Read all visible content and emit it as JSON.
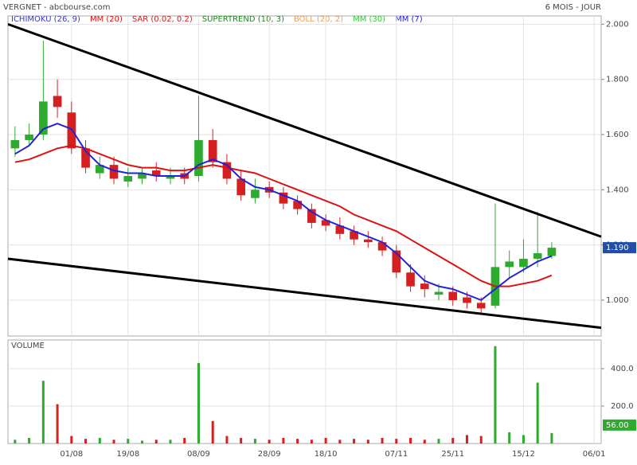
{
  "chart_data": {
    "type": "candlestick",
    "title": "VERGNET - abcbourse.com",
    "period": "6 MOIS - JOUR",
    "categories": [
      null,
      null,
      null,
      null,
      "01/08",
      null,
      null,
      null,
      "19/08",
      null,
      null,
      null,
      null,
      "08/09",
      null,
      null,
      null,
      null,
      "28/09",
      null,
      null,
      null,
      "18/10",
      null,
      null,
      null,
      null,
      "07/11",
      null,
      null,
      null,
      "25/11",
      null,
      null,
      null,
      null,
      "15/12",
      null,
      null,
      null,
      null,
      "06/01"
    ],
    "open": [
      1.55,
      1.58,
      1.6,
      1.74,
      1.68,
      1.55,
      1.46,
      1.49,
      1.43,
      1.44,
      1.47,
      1.44,
      1.46,
      1.45,
      1.58,
      1.5,
      1.44,
      1.37,
      1.41,
      1.39,
      1.36,
      1.33,
      1.29,
      1.27,
      1.25,
      1.22,
      1.21,
      1.18,
      1.1,
      1.06,
      1.02,
      1.03,
      1.01,
      0.99,
      0.98,
      1.12,
      1.12,
      1.15,
      1.16,
      null,
      null,
      null
    ],
    "high": [
      1.63,
      1.64,
      1.94,
      1.8,
      1.72,
      1.58,
      1.52,
      1.52,
      1.48,
      1.48,
      1.5,
      1.48,
      1.48,
      1.74,
      1.62,
      1.53,
      1.47,
      1.44,
      1.43,
      1.41,
      1.38,
      1.35,
      1.31,
      1.3,
      1.27,
      1.25,
      1.23,
      1.2,
      1.13,
      1.09,
      1.06,
      1.05,
      1.03,
      1.01,
      1.35,
      1.18,
      1.22,
      1.32,
      1.21,
      null,
      null,
      null
    ],
    "low": [
      1.52,
      1.56,
      1.58,
      1.66,
      1.53,
      1.46,
      1.44,
      1.42,
      1.41,
      1.42,
      1.43,
      1.42,
      1.42,
      1.43,
      1.48,
      1.42,
      1.36,
      1.35,
      1.37,
      1.33,
      1.31,
      1.26,
      1.25,
      1.22,
      1.2,
      1.19,
      1.16,
      1.08,
      1.03,
      1.01,
      1.0,
      0.98,
      0.97,
      0.95,
      0.97,
      1.08,
      1.1,
      1.12,
      1.15,
      null,
      null,
      null
    ],
    "close": [
      1.58,
      1.6,
      1.72,
      1.7,
      1.55,
      1.48,
      1.49,
      1.44,
      1.45,
      1.46,
      1.45,
      1.45,
      1.44,
      1.58,
      1.5,
      1.44,
      1.38,
      1.4,
      1.39,
      1.35,
      1.33,
      1.28,
      1.27,
      1.24,
      1.22,
      1.21,
      1.18,
      1.1,
      1.05,
      1.04,
      1.03,
      1.0,
      0.99,
      0.97,
      1.12,
      1.14,
      1.15,
      1.17,
      1.19,
      null,
      null,
      null
    ],
    "up_color": "#2eaa2e",
    "down_color": "#d42020",
    "indicators": [
      {
        "name": "ICHIMOKU (26, 9)",
        "color": "#3a3acc"
      },
      {
        "name": "MM (20)",
        "color": "#dd1111",
        "values": [
          1.5,
          1.51,
          1.53,
          1.55,
          1.56,
          1.55,
          1.53,
          1.51,
          1.49,
          1.48,
          1.48,
          1.47,
          1.47,
          1.48,
          1.49,
          1.48,
          1.47,
          1.46,
          1.44,
          1.42,
          1.4,
          1.38,
          1.36,
          1.34,
          1.31,
          1.29,
          1.27,
          1.25,
          1.22,
          1.19,
          1.16,
          1.13,
          1.1,
          1.07,
          1.05,
          1.05,
          1.06,
          1.07,
          1.09,
          null,
          null,
          null
        ]
      },
      {
        "name": "SAR (0.02, 0.2)",
        "color": "#cc2222"
      },
      {
        "name": "SUPERTREND (10, 3)",
        "color": "#228822"
      },
      {
        "name": "BOLL (20, 2)",
        "color": "#e8a060"
      },
      {
        "name": "MM (30)",
        "color": "#33cc33"
      },
      {
        "name": "MM (7)",
        "color": "#2222dd",
        "values": [
          1.53,
          1.56,
          1.62,
          1.64,
          1.62,
          1.54,
          1.49,
          1.47,
          1.46,
          1.46,
          1.45,
          1.45,
          1.45,
          1.49,
          1.51,
          1.49,
          1.44,
          1.41,
          1.4,
          1.38,
          1.36,
          1.32,
          1.29,
          1.27,
          1.25,
          1.23,
          1.21,
          1.17,
          1.12,
          1.07,
          1.05,
          1.04,
          1.02,
          1.0,
          1.04,
          1.08,
          1.11,
          1.14,
          1.16,
          null,
          null,
          null
        ]
      }
    ],
    "trend_lines": [
      {
        "values": [
          2.0,
          1.23
        ]
      },
      {
        "values": [
          1.15,
          0.9
        ]
      }
    ],
    "ylim": [
      0.87,
      2.03
    ],
    "yticks": [
      {
        "value": 1,
        "label": "1.000"
      },
      {
        "value": 1.2,
        "label": "1.200"
      },
      {
        "value": 1.4,
        "label": "1.400"
      },
      {
        "value": 1.6,
        "label": "1.600"
      },
      {
        "value": 1.8,
        "label": "1.800"
      },
      {
        "value": 2,
        "label": "2.000"
      }
    ],
    "last_price": {
      "value": 1.19,
      "label": "1.190",
      "color": "#1f4fa8"
    },
    "volume": {
      "title": "VOLUME",
      "values": [
        20,
        30,
        335,
        210,
        40,
        25,
        30,
        20,
        25,
        15,
        20,
        20,
        30,
        430,
        120,
        40,
        30,
        25,
        20,
        30,
        25,
        20,
        30,
        20,
        25,
        20,
        30,
        25,
        30,
        20,
        25,
        30,
        45,
        40,
        520,
        60,
        45,
        325,
        56,
        null,
        null,
        null
      ],
      "ylim": [
        0,
        553
      ],
      "yticks": [
        {
          "value": 200,
          "label": "200.0"
        },
        {
          "value": 400,
          "label": "400.0"
        }
      ],
      "last": {
        "value": 56,
        "label": "56.00",
        "color": "#2eaa2e"
      }
    },
    "grid": true
  }
}
